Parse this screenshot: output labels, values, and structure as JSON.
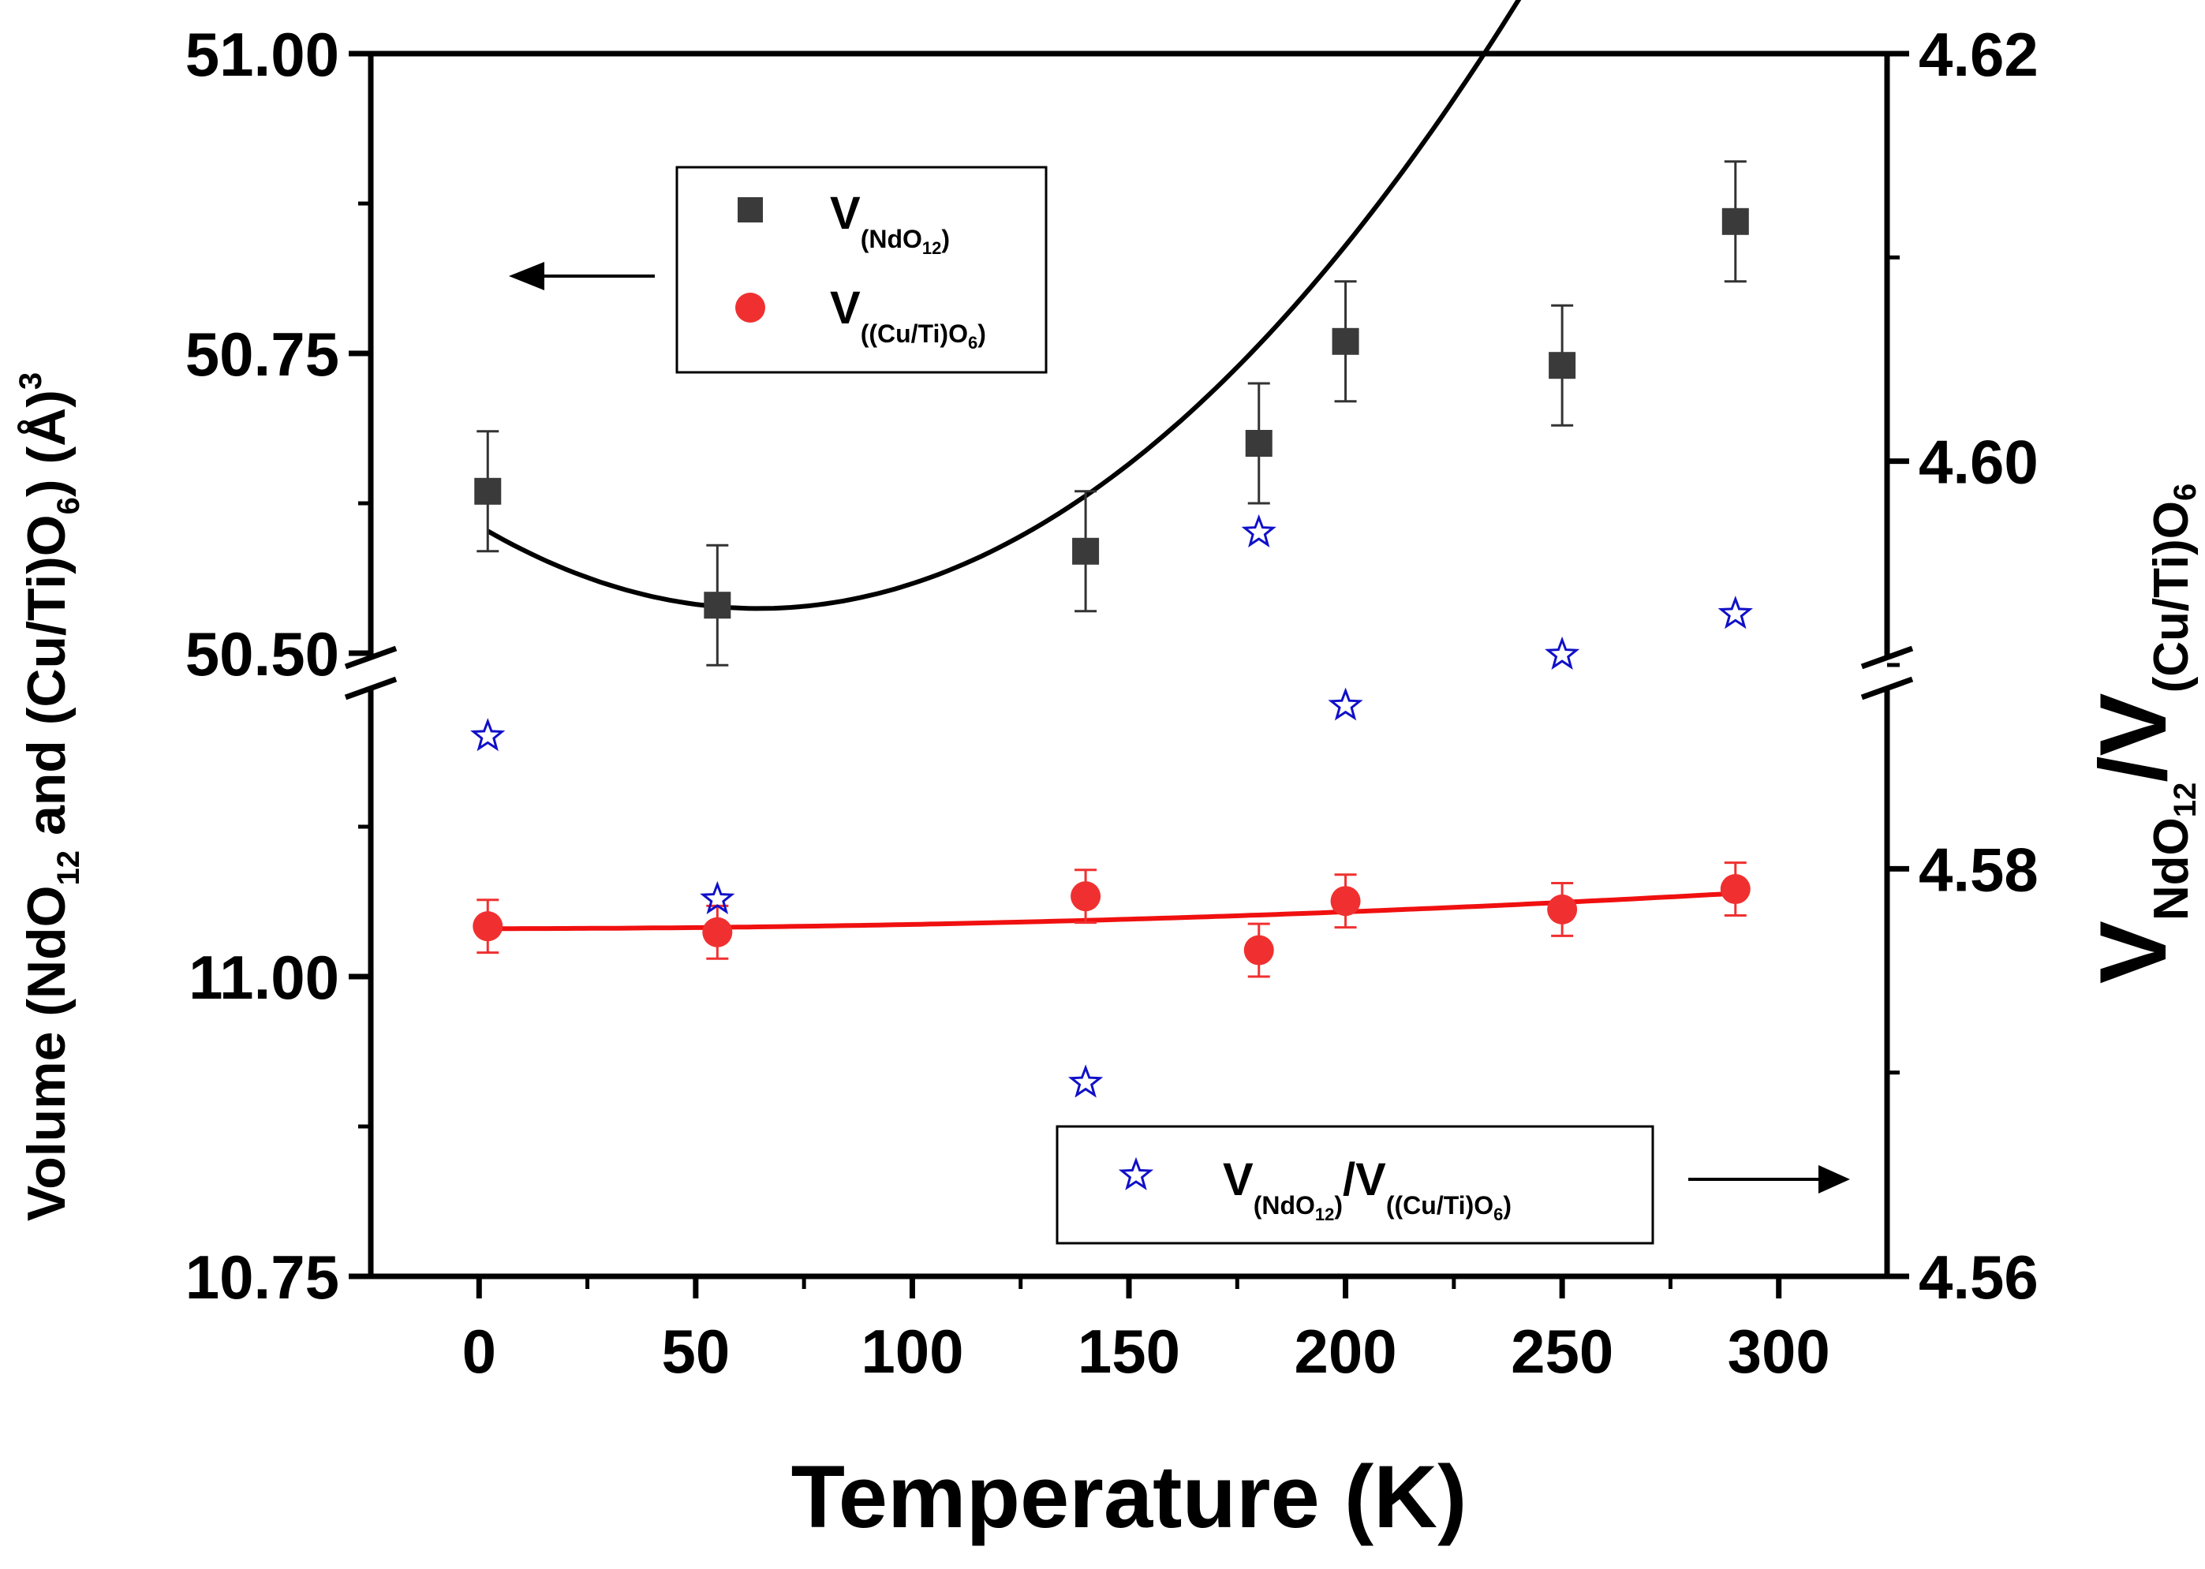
{
  "chart_data": {
    "type": "scatter",
    "xlabel": "Temperature (K)",
    "ylabel_left": {
      "prefix": "Volume (NdO",
      "sub1": "12",
      "mid": " and (Cu/Ti)O",
      "sub2": "6",
      "suffix": ") (Å)",
      "sup": "3"
    },
    "ylabel_right": {
      "V1": "V",
      "sub1": "NdO",
      "sub1b": "12",
      "slash": "/",
      "V2": "V",
      "sub2": "(Cu/Ti)O",
      "sub2b": "6"
    },
    "xlim": [
      -25,
      325
    ],
    "x_ticks": [
      "0",
      "50",
      "100",
      "150",
      "200",
      "250",
      "300"
    ],
    "x_tick_values": [
      0,
      50,
      100,
      150,
      200,
      250,
      300
    ],
    "left_axis_upper": {
      "range": [
        50.5,
        51.0
      ],
      "ticks": [
        "50.50",
        "50.75",
        "51.00"
      ],
      "tick_values": [
        50.5,
        50.75,
        51.0
      ]
    },
    "left_axis_lower": {
      "range": [
        10.75,
        11.25
      ],
      "ticks": [
        "10.75",
        "11.00"
      ],
      "tick_values": [
        10.75,
        11.0
      ]
    },
    "right_axis": {
      "range": [
        4.56,
        4.62
      ],
      "ticks": [
        "4.56",
        "4.58",
        "4.60",
        "4.62"
      ],
      "tick_values": [
        4.56,
        4.58,
        4.6,
        4.62
      ]
    },
    "series": [
      {
        "name": "V(NdO12)",
        "axis": "left_upper",
        "marker": "square",
        "color": "#3a3a3a",
        "x": [
          2,
          55,
          140,
          180,
          200,
          250,
          290
        ],
        "y": [
          50.635,
          50.54,
          50.585,
          50.675,
          50.76,
          50.74,
          50.86
        ],
        "err": [
          0.05,
          0.05,
          0.05,
          0.05,
          0.05,
          0.05,
          0.05
        ],
        "fit": [
          50.606,
          -0.00213,
          1.65e-05
        ]
      },
      {
        "name": "V((Cu/Ti)O6)",
        "axis": "left_lower",
        "marker": "circle",
        "color": "#f03030",
        "x": [
          2,
          55,
          140,
          180,
          200,
          250,
          290
        ],
        "y": [
          11.042,
          11.037,
          11.067,
          11.022,
          11.063,
          11.056,
          11.073
        ],
        "err": [
          0.022,
          0.022,
          0.022,
          0.022,
          0.022,
          0.022,
          0.022
        ],
        "fit": [
          11.04,
          0.0,
          3.5e-07
        ]
      },
      {
        "name": "V(NdO12)/V((Cu/Ti)O6)",
        "axis": "right",
        "marker": "star",
        "color": "#1010c8",
        "x": [
          2,
          55,
          140,
          180,
          200,
          250,
          290
        ],
        "y": [
          4.5865,
          4.5785,
          4.5695,
          4.5965,
          4.588,
          4.5905,
          4.5925
        ]
      }
    ],
    "legend1": {
      "row1": {
        "V": "V",
        "sub": "(NdO",
        "subnum": "12",
        "subend": ")"
      },
      "row2": {
        "V": "V",
        "sub": "((Cu/Ti)O",
        "subnum": "6",
        "subend": ")"
      }
    },
    "legend2": {
      "V1": "V",
      "sub1": "(NdO",
      "sub1num": "12",
      "sub1end": ")",
      "slash": "/",
      "V2": "V",
      "sub2": "((Cu/Ti)O",
      "sub2num": "6",
      "sub2end": ")"
    }
  }
}
